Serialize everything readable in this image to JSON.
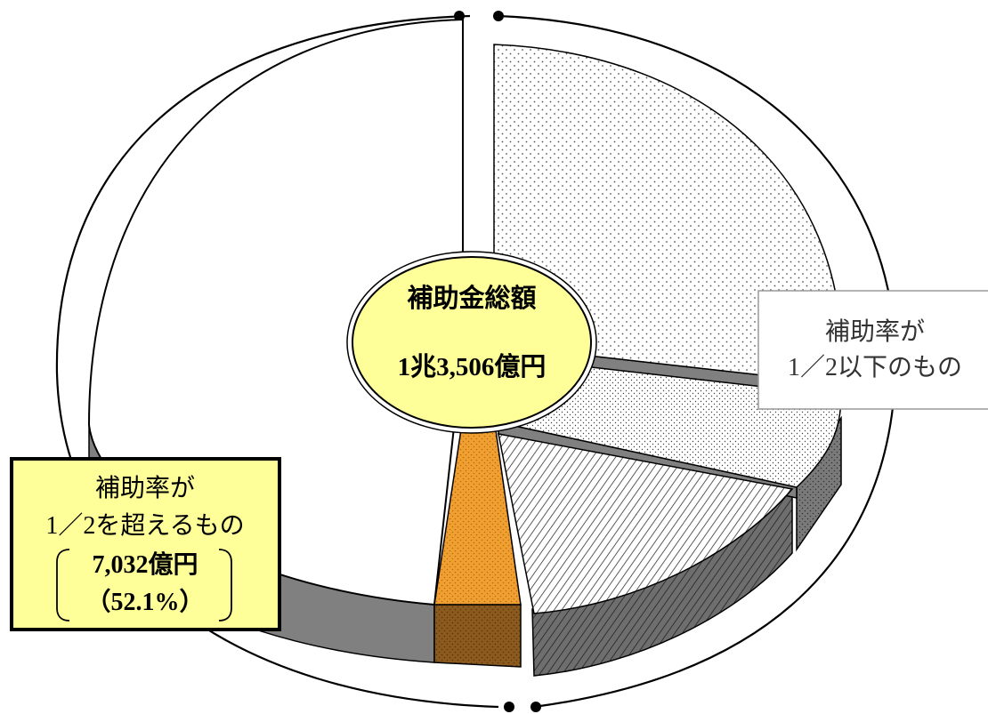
{
  "chart_data": {
    "type": "pie",
    "title": "",
    "center_label": {
      "title": "補助金総額",
      "total": "1兆3,506億円"
    },
    "groups": [
      {
        "label_line1": "補助率が",
        "label_line2": "1／2以下のもの",
        "amount": "",
        "percent": "",
        "value": 6474
      },
      {
        "label_line1": "補助率が",
        "label_line2": "1／2を超えるもの",
        "amount": "7,032億円",
        "percent": "（52.1%）",
        "value": 7032
      }
    ],
    "slices_unlabeled": [
      {
        "group": 0,
        "approx_share": 0.252,
        "pattern": "light-dots"
      },
      {
        "group": 0,
        "approx_share": 0.097,
        "pattern": "fine-dots"
      },
      {
        "group": 0,
        "approx_share": 0.129,
        "pattern": "diagonal-hatch"
      },
      {
        "group": 1,
        "approx_share": 0.041,
        "pattern": "orange-dots"
      },
      {
        "group": 1,
        "approx_share": 0.48,
        "pattern": "plain"
      }
    ],
    "colors": {
      "center_fill": "#ffff99",
      "left_label_fill": "#ffff99",
      "orange_slice": "#f0a030",
      "orange_side": "#8b5a1e",
      "side_gray": "#808080",
      "outline": "#000000"
    }
  }
}
